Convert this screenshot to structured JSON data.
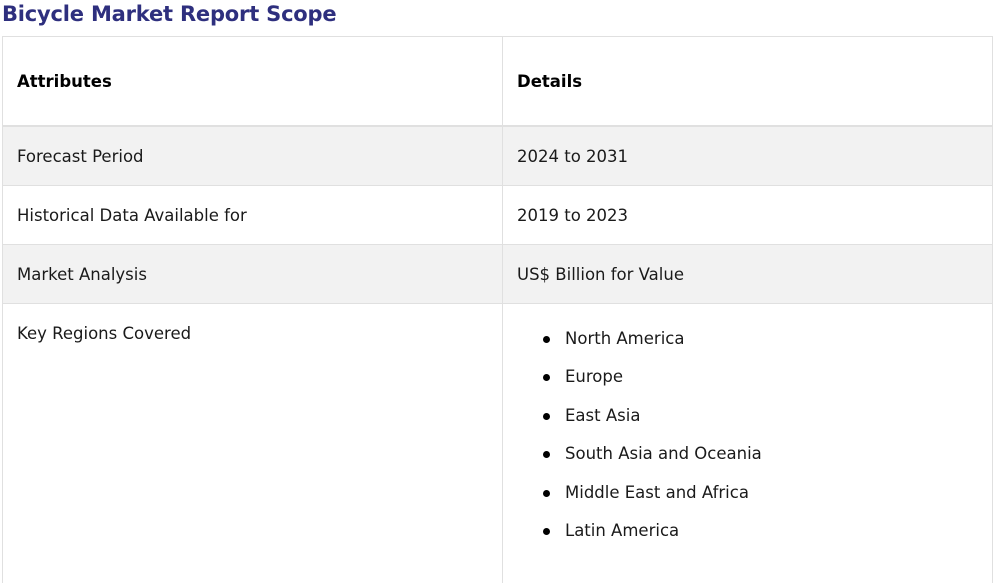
{
  "page": {
    "title": "Bicycle Market Report Scope"
  },
  "table": {
    "headers": {
      "attributes": "Attributes",
      "details": "Details"
    },
    "rows": [
      {
        "attribute": "Forecast Period",
        "detail": "2024 to 2031"
      },
      {
        "attribute": "Historical Data Available for",
        "detail": "2019 to 2023"
      },
      {
        "attribute": "Market Analysis",
        "detail": "US$ Billion for Value"
      }
    ],
    "regions": {
      "attribute": "Key Regions Covered",
      "items": [
        "North America",
        "Europe",
        "East Asia",
        "South Asia and Oceania",
        "Middle East and Africa",
        "Latin America"
      ]
    }
  },
  "colors": {
    "title": "#2e2f7e",
    "shaded_row": "#f2f2f2",
    "border": "#e0e0e0"
  }
}
